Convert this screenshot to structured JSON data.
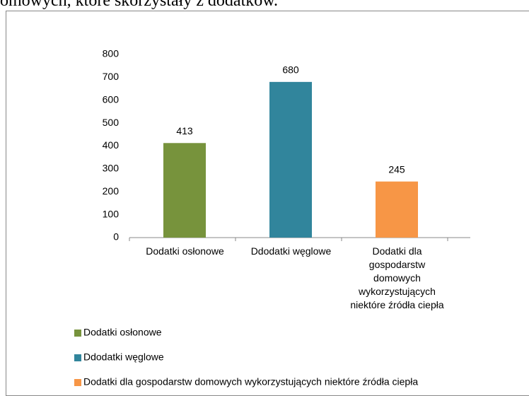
{
  "caption": "domowych, które skorzystały z dodatków.",
  "chart_data": {
    "type": "bar",
    "categories": [
      "Dodatki osłonowe",
      "Ddodatki węglowe",
      "Dodatki dla gospodarstw domowych wykorzystujących niektóre źródła ciepła"
    ],
    "values": [
      413,
      680,
      245
    ],
    "colors": [
      "#77933c",
      "#31859c",
      "#f79646"
    ],
    "ylim": [
      0,
      800
    ],
    "yticks": [
      0,
      100,
      200,
      300,
      400,
      500,
      600,
      700,
      800
    ],
    "legend": "bottom"
  }
}
